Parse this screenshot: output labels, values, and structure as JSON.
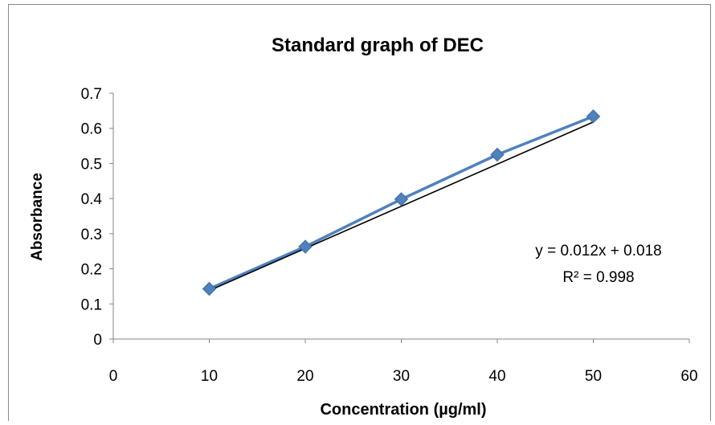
{
  "chart_data": {
    "type": "scatter",
    "title": "Standard graph of DEC",
    "xlabel": "Concentration (µg/ml)",
    "ylabel": "Absorbance",
    "xlim": [
      0,
      60
    ],
    "ylim": [
      0,
      0.7
    ],
    "xticks": [
      "0",
      "10",
      "20",
      "30",
      "40",
      "50",
      "60"
    ],
    "yticks": [
      "0",
      "0.1",
      "0.2",
      "0.3",
      "0.4",
      "0.5",
      "0.6",
      "0.7"
    ],
    "grid": false,
    "series": [
      {
        "x": [
          10,
          20,
          30,
          40,
          50
        ],
        "y": [
          0.143,
          0.263,
          0.398,
          0.525,
          0.634
        ],
        "color": "#4f81bd",
        "marker": "diamond",
        "connected": true
      }
    ],
    "trendline": {
      "type": "linear",
      "slope": 0.012,
      "intercept": 0.018,
      "from_x": 10,
      "to_x": 50,
      "color": "#000000"
    },
    "annotations": {
      "equation": "y = 0.012x + 0.018",
      "r_squared": "R² = 0.998"
    }
  }
}
